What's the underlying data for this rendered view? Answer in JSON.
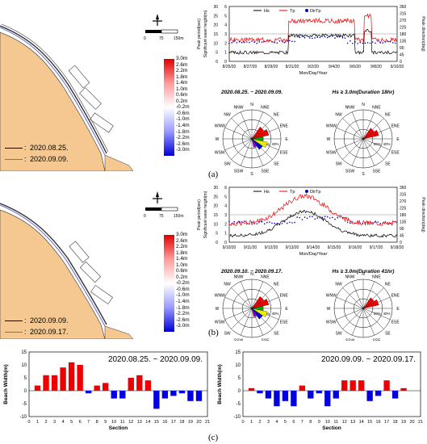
{
  "panels": {
    "a": "(a)",
    "b": "(b)",
    "c": "(c)"
  },
  "map_a": {
    "scale_ticks": [
      "0",
      "75",
      "150m"
    ],
    "colorbar": [
      "3.0m",
      "2.6m",
      "2.2m",
      "1.8m",
      "1.4m",
      "1.0m",
      "0.6m",
      "0.2m",
      "-0.2m",
      "-0.6m",
      "-1.0m",
      "-1.4m",
      "-1.8m",
      "-2.2m",
      "-2.6m",
      "-3.0m"
    ],
    "legend": [
      "2020.08.25.",
      "2020.09.09."
    ]
  },
  "map_b": {
    "scale_ticks": [
      "0",
      "75",
      "150m"
    ],
    "colorbar": [
      "3.0m",
      "2.6m",
      "2.2m",
      "1.8m",
      "1.4m",
      "1.0m",
      "0.6m",
      "0.2m",
      "-0.2m",
      "-0.6m",
      "-1.0m",
      "-1.4m",
      "-1.8m",
      "-2.2m",
      "-2.6m",
      "-3.0m"
    ],
    "legend": [
      "2020.09.09.",
      "2020.09.17."
    ]
  },
  "ts_a": {
    "legend": [
      "Hs",
      "Tp",
      "DirTp"
    ],
    "ylabel_left": "Significant wave height(m)",
    "ylabel_left2": "Peak period(sec)",
    "ylabel_right": "Peak direction(deg)",
    "xlabel": "Mon/Day/Year",
    "xticks": [
      "8/25/20",
      "8/27/20",
      "8/29/20",
      "8/31/20",
      "9/2/20",
      "9/4/20",
      "9/6/20",
      "9/8/20",
      "9/10/20"
    ],
    "yticks_h": [
      "0",
      "1",
      "2",
      "3",
      "4",
      "5",
      "6"
    ],
    "yticks_t": [
      "0",
      "5",
      "10",
      "15",
      "20",
      "25",
      "30"
    ],
    "yticks_d": [
      "0",
      "45",
      "90",
      "135",
      "180",
      "225",
      "270",
      "315",
      "360"
    ]
  },
  "ts_b": {
    "legend": [
      "Hs",
      "Tp",
      "DirTp"
    ],
    "ylabel_left": "Significant wave height(m)",
    "ylabel_left2": "Peak period(sec)",
    "ylabel_right": "Peak direction(deg)",
    "xlabel": "Mon/Day/Year",
    "xticks": [
      "9/10/20",
      "9/11/20",
      "9/12/20",
      "9/13/20",
      "9/14/20",
      "9/15/20",
      "9/16/20",
      "9/17/20",
      "9/18/20"
    ],
    "yticks_h": [
      "0",
      "1",
      "2",
      "3",
      "4",
      "5",
      "6"
    ],
    "yticks_t": [
      "0",
      "5",
      "10",
      "15",
      "20",
      "25",
      "30"
    ],
    "yticks_d": [
      "0",
      "45",
      "90",
      "135",
      "180",
      "225",
      "270",
      "315",
      "360"
    ]
  },
  "rose_a": {
    "title_left": "2020.08.25. ~ 2020.09.09.",
    "title_right": "Hs ≥ 3.0m(Duration 18hr)"
  },
  "rose_b": {
    "title_left": "2020.09.10. ~ 2020.09.17.",
    "title_right": "Hs ≥ 3.0m(Duration 41hr)"
  },
  "rose_dirs": [
    "N",
    "NNE",
    "NE",
    "ENE",
    "E",
    "ESE",
    "SE",
    "SSE",
    "S",
    "SSW",
    "SW",
    "WSW",
    "W",
    "WNW",
    "NW",
    "NNW"
  ],
  "rose_pct": [
    "20%",
    "40%"
  ],
  "chart_data": [
    {
      "type": "bar",
      "title": "2020.08.25. ~ 2020.09.09.",
      "xlabel": "Section",
      "ylabel": "Beach Width(m)",
      "ylim": [
        -10,
        15
      ],
      "yticks": [
        "-10",
        "-5",
        "0",
        "5",
        "10",
        "15"
      ],
      "categories": [
        "1",
        "2",
        "3",
        "4",
        "5",
        "6",
        "7",
        "8",
        "9",
        "10",
        "11",
        "12",
        "13",
        "14",
        "15",
        "16",
        "17",
        "18",
        "19",
        "20"
      ],
      "xticks": [
        "0",
        "1",
        "2",
        "3",
        "4",
        "5",
        "6",
        "7",
        "8",
        "9",
        "10",
        "11",
        "12",
        "13",
        "14",
        "15",
        "16",
        "17",
        "18",
        "19",
        "20",
        "21"
      ],
      "values": [
        2,
        6,
        6,
        9,
        11,
        10,
        -1,
        2,
        3,
        -3,
        -3,
        5,
        6,
        4,
        -7,
        -3,
        -2,
        -1,
        -4,
        -4
      ]
    },
    {
      "type": "bar",
      "title": "2020.09.09. ~ 2020.09.17.",
      "xlabel": "Section",
      "ylabel": "Beach Width(m)",
      "ylim": [
        -10,
        15
      ],
      "yticks": [
        "-10",
        "-5",
        "0",
        "5",
        "10",
        "15"
      ],
      "categories": [
        "1",
        "2",
        "3",
        "4",
        "5",
        "6",
        "7",
        "8",
        "9",
        "10",
        "11",
        "12",
        "13",
        "14",
        "15",
        "16",
        "17",
        "18",
        "19",
        "20"
      ],
      "xticks": [
        "0",
        "1",
        "2",
        "3",
        "4",
        "5",
        "6",
        "7",
        "8",
        "9",
        "10",
        "11",
        "12",
        "13",
        "14",
        "15",
        "16",
        "17",
        "18",
        "19",
        "20",
        "21"
      ],
      "values": [
        1,
        -1,
        -3,
        -6,
        -4,
        -6,
        2,
        -3,
        -1,
        -6,
        -3,
        4,
        4,
        4,
        -4,
        -2,
        4,
        -3,
        1,
        0
      ]
    }
  ]
}
